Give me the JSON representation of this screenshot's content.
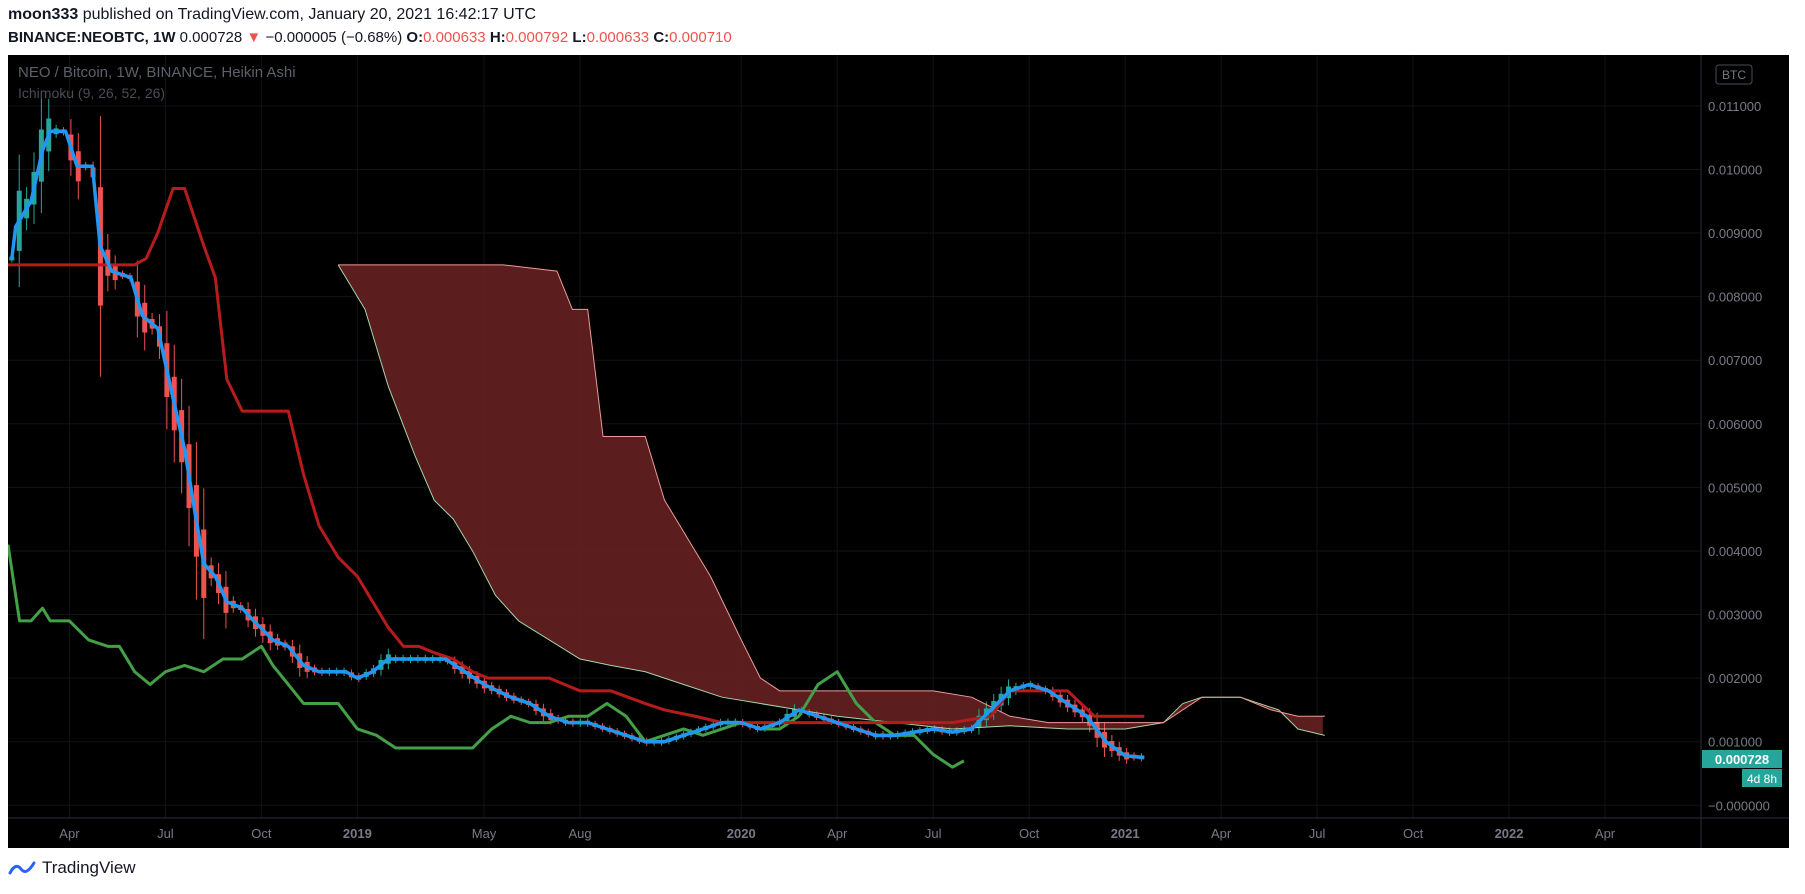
{
  "header": {
    "author": "moon333",
    "published_text": "published on TradingView.com, January 20, 2021 16:42:17 UTC",
    "symbol": "BINANCE:NEOBTC, 1W",
    "last": "0.000728",
    "arrow": "▼",
    "change": "−0.000005 (−0.68%)",
    "o_label": "O:",
    "o_value": "0.000633",
    "h_label": "H:",
    "h_value": "0.000792",
    "l_label": "L:",
    "l_value": "0.000633",
    "c_label": "C:",
    "c_value": "0.000710"
  },
  "footer": {
    "brand": "TradingView",
    "logo_icon": "tradingview-logo-icon"
  },
  "colors": {
    "background": "#000000",
    "bull": "#26a69a",
    "bear": "#ef5350",
    "conversion": "#2196f3",
    "base": "#b71c1c",
    "lagging": "#43a047",
    "cloud": "#6b2222",
    "span_a": "#a5d6a7",
    "span_b": "#ef9a9a"
  },
  "chart_data": {
    "type": "candlestick",
    "title": "NEO / Bitcoin, 1W, BINANCE, Heikin Ashi",
    "indicator_label": "Ichimoku (9, 26, 52, 26)",
    "currency_badge": "BTC",
    "ylim": [
      -0.0002,
      0.0118
    ],
    "y_ticks": [
      0.011,
      0.01,
      0.009,
      0.008,
      0.007,
      0.006,
      0.005,
      0.004,
      0.003,
      0.002,
      0.001,
      0.0
    ],
    "y_tick_labels": [
      "0.011000",
      "0.010000",
      "0.009000",
      "0.008000",
      "0.007000",
      "0.006000",
      "0.005000",
      "0.004000",
      "0.003000",
      "0.002000",
      "0.001000",
      "−0.000000"
    ],
    "x_ticks": [
      {
        "label": "Apr",
        "t": 2018.25,
        "bold": false
      },
      {
        "label": "Jul",
        "t": 2018.5,
        "bold": false
      },
      {
        "label": "Oct",
        "t": 2018.75,
        "bold": false
      },
      {
        "label": "2019",
        "t": 2019.0,
        "bold": true
      },
      {
        "label": "May",
        "t": 2019.33,
        "bold": false
      },
      {
        "label": "Aug",
        "t": 2019.58,
        "bold": false
      },
      {
        "label": "2020",
        "t": 2020.0,
        "bold": true
      },
      {
        "label": "Apr",
        "t": 2020.25,
        "bold": false
      },
      {
        "label": "Jul",
        "t": 2020.5,
        "bold": false
      },
      {
        "label": "Oct",
        "t": 2020.75,
        "bold": false
      },
      {
        "label": "2021",
        "t": 2021.0,
        "bold": true
      },
      {
        "label": "Apr",
        "t": 2021.25,
        "bold": false
      },
      {
        "label": "Jul",
        "t": 2021.5,
        "bold": false
      },
      {
        "label": "Oct",
        "t": 2021.75,
        "bold": false
      },
      {
        "label": "2022",
        "t": 2022.0,
        "bold": true
      },
      {
        "label": "Apr",
        "t": 2022.25,
        "bold": false
      }
    ],
    "xlim": [
      2018.09,
      2022.5
    ],
    "last_price_label": "0.000728",
    "countdown_label": "4d 8h",
    "last_price": 0.000728,
    "series": {
      "conversion_line": [
        [
          2018.1,
          0.0086
        ],
        [
          2018.11,
          0.0091
        ],
        [
          2018.15,
          0.0095
        ],
        [
          2018.18,
          0.0103
        ],
        [
          2018.2,
          0.0106
        ],
        [
          2018.24,
          0.0106
        ],
        [
          2018.27,
          0.01005
        ],
        [
          2018.31,
          0.01005
        ],
        [
          2018.33,
          0.0088
        ],
        [
          2018.36,
          0.0084
        ],
        [
          2018.41,
          0.0083
        ],
        [
          2018.44,
          0.0077
        ],
        [
          2018.48,
          0.0075
        ],
        [
          2018.52,
          0.0064
        ],
        [
          2018.55,
          0.0056
        ],
        [
          2018.58,
          0.0045
        ],
        [
          2018.6,
          0.0038
        ],
        [
          2018.63,
          0.0036
        ],
        [
          2018.66,
          0.0032
        ],
        [
          2018.7,
          0.0031
        ],
        [
          2018.73,
          0.0029
        ],
        [
          2018.78,
          0.0026
        ],
        [
          2018.82,
          0.0025
        ],
        [
          2018.86,
          0.0022
        ],
        [
          2018.9,
          0.0021
        ],
        [
          2018.93,
          0.0021
        ],
        [
          2018.97,
          0.0021
        ],
        [
          2019.0,
          0.002
        ],
        [
          2019.04,
          0.0021
        ],
        [
          2019.08,
          0.0023
        ],
        [
          2019.13,
          0.0023
        ],
        [
          2019.18,
          0.0023
        ],
        [
          2019.23,
          0.0023
        ],
        [
          2019.28,
          0.0021
        ],
        [
          2019.33,
          0.0019
        ],
        [
          2019.4,
          0.0017
        ],
        [
          2019.45,
          0.0016
        ],
        [
          2019.5,
          0.0014
        ],
        [
          2019.55,
          0.0013
        ],
        [
          2019.6,
          0.0013
        ],
        [
          2019.65,
          0.0012
        ],
        [
          2019.7,
          0.0011
        ],
        [
          2019.75,
          0.001
        ],
        [
          2019.8,
          0.001
        ],
        [
          2019.85,
          0.0011
        ],
        [
          2019.9,
          0.0012
        ],
        [
          2019.95,
          0.0013
        ],
        [
          2020.0,
          0.0013
        ],
        [
          2020.05,
          0.0012
        ],
        [
          2020.1,
          0.0013
        ],
        [
          2020.15,
          0.0015
        ],
        [
          2020.2,
          0.0014
        ],
        [
          2020.25,
          0.0013
        ],
        [
          2020.3,
          0.0012
        ],
        [
          2020.35,
          0.0011
        ],
        [
          2020.4,
          0.0011
        ],
        [
          2020.45,
          0.00115
        ],
        [
          2020.5,
          0.0012
        ],
        [
          2020.55,
          0.00115
        ],
        [
          2020.6,
          0.0012
        ],
        [
          2020.65,
          0.0015
        ],
        [
          2020.7,
          0.0018
        ],
        [
          2020.75,
          0.0019
        ],
        [
          2020.8,
          0.0018
        ],
        [
          2020.85,
          0.0016
        ],
        [
          2020.9,
          0.0014
        ],
        [
          2020.95,
          0.001
        ],
        [
          2021.0,
          0.00078
        ],
        [
          2021.05,
          0.00075
        ]
      ],
      "base_line": [
        [
          2018.09,
          0.0085
        ],
        [
          2018.2,
          0.0085
        ],
        [
          2018.28,
          0.0085
        ],
        [
          2018.35,
          0.0085
        ],
        [
          2018.42,
          0.0085
        ],
        [
          2018.45,
          0.0086
        ],
        [
          2018.48,
          0.009
        ],
        [
          2018.52,
          0.0097
        ],
        [
          2018.55,
          0.0097
        ],
        [
          2018.6,
          0.0088
        ],
        [
          2018.63,
          0.0083
        ],
        [
          2018.66,
          0.0067
        ],
        [
          2018.7,
          0.0062
        ],
        [
          2018.76,
          0.0062
        ],
        [
          2018.82,
          0.0062
        ],
        [
          2018.86,
          0.0052
        ],
        [
          2018.9,
          0.0044
        ],
        [
          2018.95,
          0.0039
        ],
        [
          2019.0,
          0.0036
        ],
        [
          2019.04,
          0.0032
        ],
        [
          2019.08,
          0.0028
        ],
        [
          2019.12,
          0.0025
        ],
        [
          2019.16,
          0.0025
        ],
        [
          2019.2,
          0.0024
        ],
        [
          2019.25,
          0.0023
        ],
        [
          2019.3,
          0.0021
        ],
        [
          2019.34,
          0.002
        ],
        [
          2019.42,
          0.002
        ],
        [
          2019.5,
          0.002
        ],
        [
          2019.58,
          0.0018
        ],
        [
          2019.66,
          0.0018
        ],
        [
          2019.75,
          0.0016
        ],
        [
          2019.8,
          0.0015
        ],
        [
          2019.88,
          0.0014
        ],
        [
          2019.95,
          0.0013
        ],
        [
          2020.05,
          0.0013
        ],
        [
          2020.15,
          0.0013
        ],
        [
          2020.25,
          0.0013
        ],
        [
          2020.35,
          0.0013
        ],
        [
          2020.45,
          0.0013
        ],
        [
          2020.55,
          0.0013
        ],
        [
          2020.65,
          0.0014
        ],
        [
          2020.7,
          0.0018
        ],
        [
          2020.78,
          0.0018
        ],
        [
          2020.85,
          0.0018
        ],
        [
          2020.92,
          0.0014
        ],
        [
          2021.0,
          0.0014
        ],
        [
          2021.05,
          0.0014
        ]
      ],
      "lagging_span": [
        [
          2018.09,
          0.0041
        ],
        [
          2018.12,
          0.0029
        ],
        [
          2018.15,
          0.0029
        ],
        [
          2018.18,
          0.0031
        ],
        [
          2018.2,
          0.0029
        ],
        [
          2018.25,
          0.0029
        ],
        [
          2018.3,
          0.0026
        ],
        [
          2018.35,
          0.0025
        ],
        [
          2018.38,
          0.0025
        ],
        [
          2018.42,
          0.0021
        ],
        [
          2018.46,
          0.0019
        ],
        [
          2018.5,
          0.0021
        ],
        [
          2018.55,
          0.0022
        ],
        [
          2018.6,
          0.0021
        ],
        [
          2018.65,
          0.0023
        ],
        [
          2018.7,
          0.0023
        ],
        [
          2018.75,
          0.0025
        ],
        [
          2018.78,
          0.0022
        ],
        [
          2018.82,
          0.0019
        ],
        [
          2018.86,
          0.0016
        ],
        [
          2018.9,
          0.0016
        ],
        [
          2018.95,
          0.0016
        ],
        [
          2019.0,
          0.0012
        ],
        [
          2019.05,
          0.0011
        ],
        [
          2019.1,
          0.0009
        ],
        [
          2019.15,
          0.0009
        ],
        [
          2019.2,
          0.0009
        ],
        [
          2019.25,
          0.0009
        ],
        [
          2019.3,
          0.0009
        ],
        [
          2019.35,
          0.0012
        ],
        [
          2019.4,
          0.0014
        ],
        [
          2019.45,
          0.0013
        ],
        [
          2019.5,
          0.0013
        ],
        [
          2019.55,
          0.0014
        ],
        [
          2019.6,
          0.0014
        ],
        [
          2019.65,
          0.0016
        ],
        [
          2019.7,
          0.0014
        ],
        [
          2019.75,
          0.001
        ],
        [
          2019.8,
          0.0011
        ],
        [
          2019.85,
          0.0012
        ],
        [
          2019.9,
          0.0011
        ],
        [
          2019.95,
          0.0012
        ],
        [
          2020.0,
          0.0013
        ],
        [
          2020.05,
          0.0012
        ],
        [
          2020.1,
          0.0012
        ],
        [
          2020.15,
          0.0014
        ],
        [
          2020.2,
          0.0019
        ],
        [
          2020.25,
          0.0021
        ],
        [
          2020.3,
          0.0016
        ],
        [
          2020.35,
          0.0013
        ],
        [
          2020.4,
          0.0011
        ],
        [
          2020.45,
          0.0011
        ],
        [
          2020.5,
          0.0008
        ],
        [
          2020.55,
          0.0006
        ],
        [
          2020.58,
          0.0007
        ]
      ],
      "span_a": [
        [
          2018.95,
          0.0085
        ],
        [
          2019.02,
          0.0078
        ],
        [
          2019.08,
          0.0066
        ],
        [
          2019.15,
          0.0055
        ],
        [
          2019.2,
          0.0048
        ],
        [
          2019.25,
          0.0045
        ],
        [
          2019.3,
          0.004
        ],
        [
          2019.36,
          0.0033
        ],
        [
          2019.42,
          0.0029
        ],
        [
          2019.5,
          0.0026
        ],
        [
          2019.58,
          0.0023
        ],
        [
          2019.66,
          0.0022
        ],
        [
          2019.75,
          0.0021
        ],
        [
          2019.85,
          0.0019
        ],
        [
          2019.95,
          0.0017
        ],
        [
          2020.05,
          0.0016
        ],
        [
          2020.15,
          0.0015
        ],
        [
          2020.25,
          0.0014
        ],
        [
          2020.4,
          0.0013
        ],
        [
          2020.55,
          0.0012
        ],
        [
          2020.7,
          0.00125
        ],
        [
          2020.85,
          0.0012
        ],
        [
          2021.0,
          0.0012
        ],
        [
          2021.1,
          0.0013
        ],
        [
          2021.15,
          0.0016
        ],
        [
          2021.2,
          0.0017
        ],
        [
          2021.3,
          0.0017
        ],
        [
          2021.35,
          0.0016
        ],
        [
          2021.4,
          0.0015
        ],
        [
          2021.45,
          0.0012
        ],
        [
          2021.52,
          0.0011
        ]
      ],
      "span_b": [
        [
          2018.95,
          0.0085
        ],
        [
          2019.1,
          0.0085
        ],
        [
          2019.25,
          0.0085
        ],
        [
          2019.38,
          0.0085
        ],
        [
          2019.52,
          0.0084
        ],
        [
          2019.56,
          0.0078
        ],
        [
          2019.6,
          0.0078
        ],
        [
          2019.64,
          0.0058
        ],
        [
          2019.75,
          0.0058
        ],
        [
          2019.8,
          0.0048
        ],
        [
          2019.85,
          0.0043
        ],
        [
          2019.92,
          0.0036
        ],
        [
          2020.0,
          0.0026
        ],
        [
          2020.05,
          0.002
        ],
        [
          2020.1,
          0.0018
        ],
        [
          2020.2,
          0.0018
        ],
        [
          2020.3,
          0.0018
        ],
        [
          2020.4,
          0.0018
        ],
        [
          2020.5,
          0.0018
        ],
        [
          2020.6,
          0.0017
        ],
        [
          2020.7,
          0.0014
        ],
        [
          2020.8,
          0.0013
        ],
        [
          2020.9,
          0.0013
        ],
        [
          2021.0,
          0.0013
        ],
        [
          2021.1,
          0.0013
        ],
        [
          2021.2,
          0.0017
        ],
        [
          2021.3,
          0.0017
        ],
        [
          2021.38,
          0.0015
        ],
        [
          2021.45,
          0.0014
        ],
        [
          2021.52,
          0.0014
        ]
      ]
    }
  }
}
